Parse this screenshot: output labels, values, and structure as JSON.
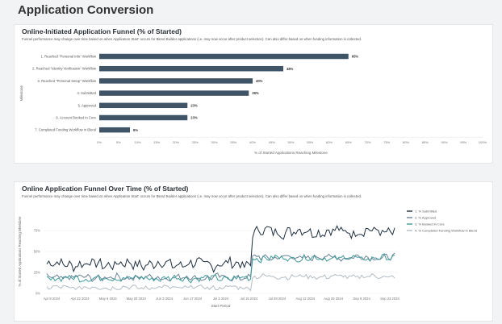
{
  "page": {
    "title": "Application Conversion"
  },
  "funnel": {
    "title": "Online-Initiated Application Funnel (% of Started)",
    "subtitle": "Funnel performance may change over time based on when Application Start' occurs for Blend Builder applications (i.e. may now occur after product selection). Can also differ based on when funding information is collected.",
    "bar_color": "#3f5567",
    "chart_data": {
      "type": "bar",
      "orientation": "horizontal",
      "title": "Online-Initiated Application Funnel (% of Started)",
      "xlabel": "% of Started Applications Reaching Milestone",
      "ylabel": "Milestone",
      "xlim": [
        0,
        100
      ],
      "xticks": [
        "0%",
        "5%",
        "10%",
        "15%",
        "20%",
        "25%",
        "30%",
        "35%",
        "40%",
        "45%",
        "50%",
        "55%",
        "60%",
        "65%",
        "70%",
        "75%",
        "80%",
        "85%",
        "90%",
        "95%",
        "100%"
      ],
      "categories": [
        "1. Reached \"Personal Info\" Workflow",
        "2. Reached \"Identity Verification\" Workflow",
        "3. Reached \"Personal Setup\" Workflow",
        "4. Submitted",
        "5. Approved",
        "6. Account Booked in Core",
        "7. Completed Funding Workflow in Blend"
      ],
      "values": [
        65,
        48,
        40,
        39,
        23,
        23,
        8
      ],
      "labels": [
        "65%",
        "48%",
        "40%",
        "39%",
        "23%",
        "23%",
        "8%"
      ]
    }
  },
  "timeline": {
    "title": "Online Application Funnel Over Time (% of Started)",
    "subtitle": "Funnel performance may change over time based on when Application Start' occurs for Blend Builder applications (i.e. may now occur after product selection). Can also differ based on when funding information is collected.",
    "chart_data": {
      "type": "line",
      "title": "Online Application Funnel Over Time (% of Started)",
      "xlabel": "Start Period",
      "ylabel": "% of Started Applications Reaching Milestone",
      "ylim": [
        0,
        100
      ],
      "yticks": [
        "0%",
        "25%",
        "50%",
        "75%"
      ],
      "xticks": [
        "Apr 8 2024",
        "Apr 22 2024",
        "May 6 2024",
        "May 20 2024",
        "Jun 3 2024",
        "Jun 17 2024",
        "Jul 1 2024",
        "Jul 15 2024",
        "Jul 29 2024",
        "Aug 12 2024",
        "Aug 26 2024",
        "Sep 9 2024",
        "Sep 23 2024"
      ],
      "legend_position": "right",
      "series": [
        {
          "name": "1. % Submitted",
          "color": "#1f2f3f",
          "base": [
            35,
            74
          ],
          "amp": 7
        },
        {
          "name": "2. % Approved",
          "color": "#6b8296",
          "base": [
            19,
            43
          ],
          "amp": 4
        },
        {
          "name": "3. % Booked in Core",
          "color": "#3f9a9a",
          "base": [
            18,
            42
          ],
          "amp": 4
        },
        {
          "name": "4. % Completed Funding Workflow in Blend",
          "color": "#b3bcc4",
          "base": [
            7,
            20
          ],
          "amp": 3
        }
      ],
      "step_after_tick": "Jul 15 2024"
    }
  }
}
